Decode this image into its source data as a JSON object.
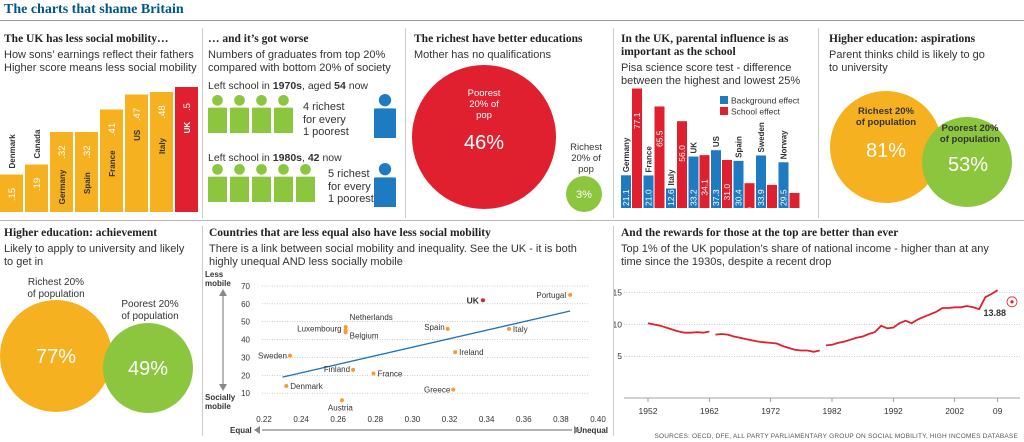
{
  "page_title": "The charts that shame Britain",
  "source": "SOURCES: OECD, DFE, ALL PARTY PARLIAMENTARY GROUP ON SOCIAL MOBILITY, HIGH INCOMES DATABASE",
  "colors": {
    "orange": "#f6b120",
    "red": "#e0202e",
    "green": "#8cc63e",
    "blue": "#1f7bc1",
    "line": "#1f72b8",
    "dot": "#f39c32",
    "ukdot": "#d41e2c"
  },
  "p1": {
    "title": "The UK has less social mobility…",
    "sub1": "How sons’ earnings reflect their fathers",
    "sub2": "Higher score means less social mobility"
  },
  "p2": {
    "title": "… and it’s got worse",
    "sub1": "Numbers of graduates from top 20%",
    "sub2": "compared with bottom 20% of society",
    "row1_pre": "Left school in ",
    "row1_year": "1970s",
    "row1_mid": ", aged ",
    "row1_age": "54",
    "row1_post": " now",
    "row1_l1": "4 richest",
    "row1_l2": "for every",
    "row1_l3": "1 poorest",
    "row2_pre": "Left school in ",
    "row2_year": "1980s",
    "row2_mid": ", ",
    "row2_age": "42",
    "row2_post": " now",
    "row2_l1": "5 richest",
    "row2_l2": "for every",
    "row2_l3": "1 poorest"
  },
  "p3": {
    "title": "The richest have better educations",
    "sub": "Mother has no qualifications",
    "big_l1": "Poorest",
    "big_l2": "20% of",
    "big_l3": "pop",
    "big_val": "46%",
    "small_l1": "Richest",
    "small_l2": "20% of",
    "small_l3": "pop",
    "small_val": "3%"
  },
  "p4": {
    "title1": "In the UK, parental influence is as",
    "title2": "important as the school",
    "sub1": "Pisa science score test - difference",
    "sub2": "between the highest and lowest 25%",
    "legend_bg": "Background effect",
    "legend_school": "School effect"
  },
  "p5": {
    "title": "Higher education: aspirations",
    "sub1": "Parent thinks child is likely to go",
    "sub2": "to university",
    "a_l1": "Richest 20%",
    "a_l2": "of population",
    "a_val": "81%",
    "b_l1": "Poorest 20%",
    "b_l2": "of population",
    "b_val": "53%"
  },
  "p6": {
    "title": "Higher education: achievement",
    "sub1": "Likely to apply to university and likely",
    "sub2": "to get in",
    "a_l1": "Richest 20%",
    "a_l2": "of population",
    "a_val": "77%",
    "b_l1": "Poorest 20%",
    "b_l2": "of population",
    "b_val": "49%"
  },
  "p7": {
    "title": "Countries that are less equal also have less social mobility",
    "sub1": "There is a link between social mobility and inequality. See the UK - it is both",
    "sub2": "highly unequal AND less socially mobile",
    "less1": "Less",
    "less2": "mobile",
    "soc1": "Socially",
    "soc2": "mobile",
    "equal": "Equal",
    "unequal": "Unequal"
  },
  "p8": {
    "title": "And the rewards for those at the top are better than ever",
    "sub1": "Top 1% of the UK population’s share of national income - higher than at any",
    "sub2": "time since the 1930s, despite a recent drop",
    "last_label": "13.88"
  },
  "chart_data": [
    {
      "type": "bar",
      "title": "The UK has less social mobility…",
      "categories": [
        "Denmark",
        "Canada",
        "Germany",
        "Spain",
        "France",
        "US",
        "Italy",
        "UK"
      ],
      "values": [
        0.15,
        0.19,
        0.32,
        0.32,
        0.41,
        0.47,
        0.48,
        0.5
      ],
      "labels": [
        ".15",
        ".19",
        ".32",
        ".32",
        ".41",
        ".47",
        ".48",
        ".5"
      ],
      "highlight": "UK"
    },
    {
      "type": "bar",
      "title": "In the UK, parental influence is as important as the school",
      "categories": [
        "Germany",
        "France",
        "Italy",
        "UK",
        "US",
        "Spain",
        "Sweden",
        "Norway"
      ],
      "series": [
        {
          "name": "Background effect",
          "values": [
            21.1,
            21.0,
            12.6,
            33.2,
            37.3,
            30.4,
            33.9,
            29.5
          ]
        },
        {
          "name": "School effect",
          "values": [
            77.1,
            65.5,
            56.0,
            34.1,
            31.0,
            16.0,
            14.9,
            9.7
          ]
        }
      ]
    },
    {
      "type": "scatter",
      "title": "Countries that are less equal also have less social mobility",
      "xlim": [
        0.22,
        0.4
      ],
      "ylim": [
        0,
        70
      ],
      "xticks": [
        "0.22",
        "0.24",
        "0.26",
        "0.28",
        "0.30",
        "0.32",
        "0.34",
        "0.36",
        "0.38",
        "0.40"
      ],
      "yticks": [
        "10",
        "20",
        "30",
        "40",
        "50",
        "60",
        "70"
      ],
      "points": [
        {
          "label": "Denmark",
          "x": 0.232,
          "y": 14
        },
        {
          "label": "Austria",
          "x": 0.262,
          "y": 6
        },
        {
          "label": "Sweden",
          "x": 0.234,
          "y": 31
        },
        {
          "label": "Finland",
          "x": 0.268,
          "y": 23
        },
        {
          "label": "Luxembourg",
          "x": 0.264,
          "y": 45
        },
        {
          "label": "Netherlands",
          "x": 0.264,
          "y": 47
        },
        {
          "label": "Belgium",
          "x": 0.264,
          "y": 44
        },
        {
          "label": "France",
          "x": 0.279,
          "y": 21
        },
        {
          "label": "Greece",
          "x": 0.322,
          "y": 12
        },
        {
          "label": "Ireland",
          "x": 0.323,
          "y": 33
        },
        {
          "label": "Spain",
          "x": 0.319,
          "y": 46
        },
        {
          "label": "Italy",
          "x": 0.352,
          "y": 46
        },
        {
          "label": "UK",
          "x": 0.338,
          "y": 62
        },
        {
          "label": "Portugal",
          "x": 0.385,
          "y": 65
        }
      ],
      "trend": {
        "x": [
          0.23,
          0.385
        ],
        "y": [
          19,
          56
        ]
      }
    },
    {
      "type": "line",
      "title": "And the rewards for those at the top are better than ever",
      "xticks": [
        "1952",
        "1962",
        "1972",
        "1982",
        "1992",
        "2002",
        "09"
      ],
      "yticks": [
        "5",
        "10",
        "15"
      ],
      "ylim": [
        0,
        17
      ],
      "series": [
        {
          "name": "Top 1% share",
          "segments": [
            [
              [
                1952,
                10.2
              ],
              [
                1953,
                10.0
              ],
              [
                1954,
                9.8
              ],
              [
                1955,
                9.5
              ],
              [
                1956,
                9.2
              ],
              [
                1957,
                8.9
              ],
              [
                1958,
                8.7
              ],
              [
                1959,
                8.7
              ],
              [
                1960,
                8.8
              ],
              [
                1961,
                8.7
              ],
              [
                1962,
                8.9
              ]
            ],
            [
              [
                1963,
                8.4
              ],
              [
                1964,
                8.5
              ],
              [
                1965,
                8.4
              ],
              [
                1966,
                8.1
              ],
              [
                1967,
                7.9
              ],
              [
                1968,
                7.7
              ],
              [
                1969,
                7.5
              ],
              [
                1970,
                7.3
              ],
              [
                1971,
                7.2
              ],
              [
                1972,
                7.1
              ],
              [
                1973,
                7.0
              ],
              [
                1974,
                6.6
              ],
              [
                1975,
                6.3
              ],
              [
                1976,
                6.0
              ],
              [
                1977,
                5.9
              ],
              [
                1978,
                5.9
              ],
              [
                1979,
                5.7
              ],
              [
                1980,
                5.9
              ]
            ],
            [
              [
                1981,
                6.7
              ],
              [
                1982,
                6.8
              ],
              [
                1983,
                7.1
              ],
              [
                1984,
                7.3
              ],
              [
                1985,
                7.6
              ],
              [
                1986,
                7.9
              ],
              [
                1987,
                8.1
              ],
              [
                1988,
                8.5
              ],
              [
                1989,
                8.8
              ],
              [
                1990,
                9.8
              ],
              [
                1991,
                9.4
              ],
              [
                1992,
                9.5
              ],
              [
                1993,
                10.2
              ],
              [
                1994,
                10.6
              ],
              [
                1995,
                10.2
              ],
              [
                1996,
                10.8
              ],
              [
                1997,
                11.2
              ],
              [
                1998,
                11.6
              ],
              [
                1999,
                12.0
              ],
              [
                2000,
                12.6
              ],
              [
                2001,
                12.6
              ],
              [
                2002,
                12.7
              ],
              [
                2003,
                12.7
              ],
              [
                2004,
                12.9
              ],
              [
                2005,
                12.7
              ],
              [
                2006,
                12.4
              ],
              [
                2007,
                14.3
              ],
              [
                2008,
                14.8
              ],
              [
                2009,
                15.4
              ]
            ]
          ]
        }
      ],
      "last_point": {
        "x": 2012,
        "y": 13.88,
        "label": "13.88"
      }
    }
  ]
}
